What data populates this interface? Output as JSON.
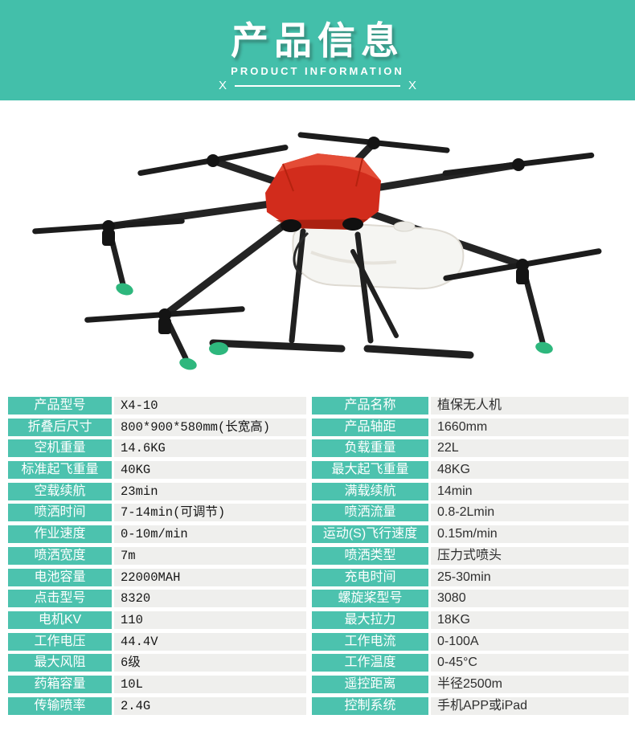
{
  "colors": {
    "teal_band": "#43bfaa",
    "teal_label": "#4cc2ae",
    "value_cell_bg": "#efefed",
    "drone_red": "#d22c1c",
    "drone_green": "#2eb77d",
    "frame_black": "#232323",
    "tank_white": "#f5f5f2"
  },
  "header": {
    "title": "产品信息",
    "subtitle": "PRODUCT INFORMATION",
    "divider_left": "X",
    "divider_right": "X"
  },
  "product_image": {
    "alt": "红色植保六旋翼喷洒无人机"
  },
  "spec_table": {
    "left_rows": [
      {
        "label": "产品型号",
        "value": "X4-10"
      },
      {
        "label": "折叠后尺寸",
        "value": "800*900*580mm(长宽高)"
      },
      {
        "label": "空机重量",
        "value": "14.6KG"
      },
      {
        "label": "标准起飞重量",
        "value": "40KG"
      },
      {
        "label": "空载续航",
        "value": "23min"
      },
      {
        "label": "喷洒时间",
        "value": "7-14min(可调节)"
      },
      {
        "label": "作业速度",
        "value": "0-10m/min"
      },
      {
        "label": "喷洒宽度",
        "value": "7m"
      },
      {
        "label": "电池容量",
        "value": "22000MAH"
      },
      {
        "label": "点击型号",
        "value": "8320"
      },
      {
        "label": "电机KV",
        "value": "110"
      },
      {
        "label": "工作电压",
        "value": "44.4V"
      },
      {
        "label": "最大风阻",
        "value": "6级"
      },
      {
        "label": "药箱容量",
        "value": "10L"
      },
      {
        "label": "传输喷率",
        "value": "2.4G"
      }
    ],
    "right_rows": [
      {
        "label": "产品名称",
        "value": "植保无人机"
      },
      {
        "label": "产品轴距",
        "value": "1660mm"
      },
      {
        "label": "负载重量",
        "value": "22L"
      },
      {
        "label": "最大起飞重量",
        "value": "48KG"
      },
      {
        "label": "满载续航",
        "value": "14min"
      },
      {
        "label": "喷洒流量",
        "value": "0.8-2Lmin"
      },
      {
        "label": "运动(S)飞行速度",
        "value": "0.15m/min"
      },
      {
        "label": "喷洒类型",
        "value": "压力式喷头"
      },
      {
        "label": "充电时间",
        "value": "25-30min"
      },
      {
        "label": "螺旋桨型号",
        "value": "3080"
      },
      {
        "label": "最大拉力",
        "value": "18KG"
      },
      {
        "label": "工作电流",
        "value": "0-100A"
      },
      {
        "label": "工作温度",
        "value": "0-45°C"
      },
      {
        "label": "遥控距离",
        "value": "半径2500m"
      },
      {
        "label": "控制系统",
        "value": "手机APP或iPad"
      }
    ]
  }
}
